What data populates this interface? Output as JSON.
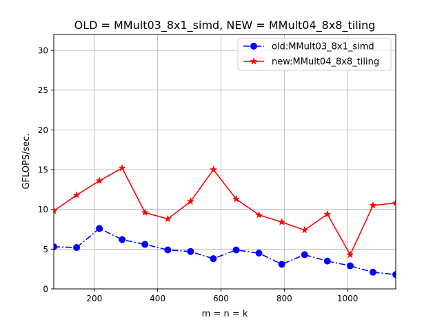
{
  "chart_data": {
    "type": "line",
    "title": "OLD = MMult03_8x1_simd, NEW = MMult04_8x8_tiling",
    "xlabel": "m = n = k",
    "ylabel": "GFLOPS/sec.",
    "xlim": [
      72,
      1152
    ],
    "ylim": [
      0,
      32
    ],
    "xticks": [
      200,
      400,
      600,
      800,
      1000
    ],
    "yticks": [
      0,
      5,
      10,
      15,
      20,
      25,
      30
    ],
    "grid": true,
    "legend_position": "top-right",
    "x": [
      72,
      144,
      216,
      288,
      360,
      432,
      504,
      576,
      648,
      720,
      792,
      864,
      936,
      1008,
      1080,
      1152
    ],
    "series": [
      {
        "name": "old:MMult03_8x1_simd",
        "color": "#0000ff",
        "marker": "circle",
        "line_style": "dashdot",
        "values": [
          5.3,
          5.2,
          7.6,
          6.2,
          5.6,
          4.9,
          4.7,
          3.8,
          4.9,
          4.5,
          3.1,
          4.3,
          3.5,
          2.9,
          2.1,
          1.8
        ]
      },
      {
        "name": "new:MMult04_8x8_tiling",
        "color": "#ff0000",
        "marker": "star",
        "line_style": "solid",
        "values": [
          9.8,
          11.8,
          13.6,
          15.2,
          9.6,
          8.8,
          11.0,
          15.0,
          11.3,
          9.3,
          8.4,
          7.4,
          9.4,
          4.3,
          10.5,
          10.8
        ]
      }
    ]
  }
}
